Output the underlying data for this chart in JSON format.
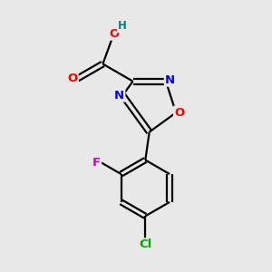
{
  "background_color": "#e8e8e8",
  "atom_colors": {
    "C": "#000000",
    "N": "#0000ff",
    "O": "#ff0000",
    "F": "#cc00cc",
    "Cl": "#00aa00",
    "H": "#008080"
  },
  "figsize": [
    3.0,
    3.0
  ],
  "dpi": 100
}
